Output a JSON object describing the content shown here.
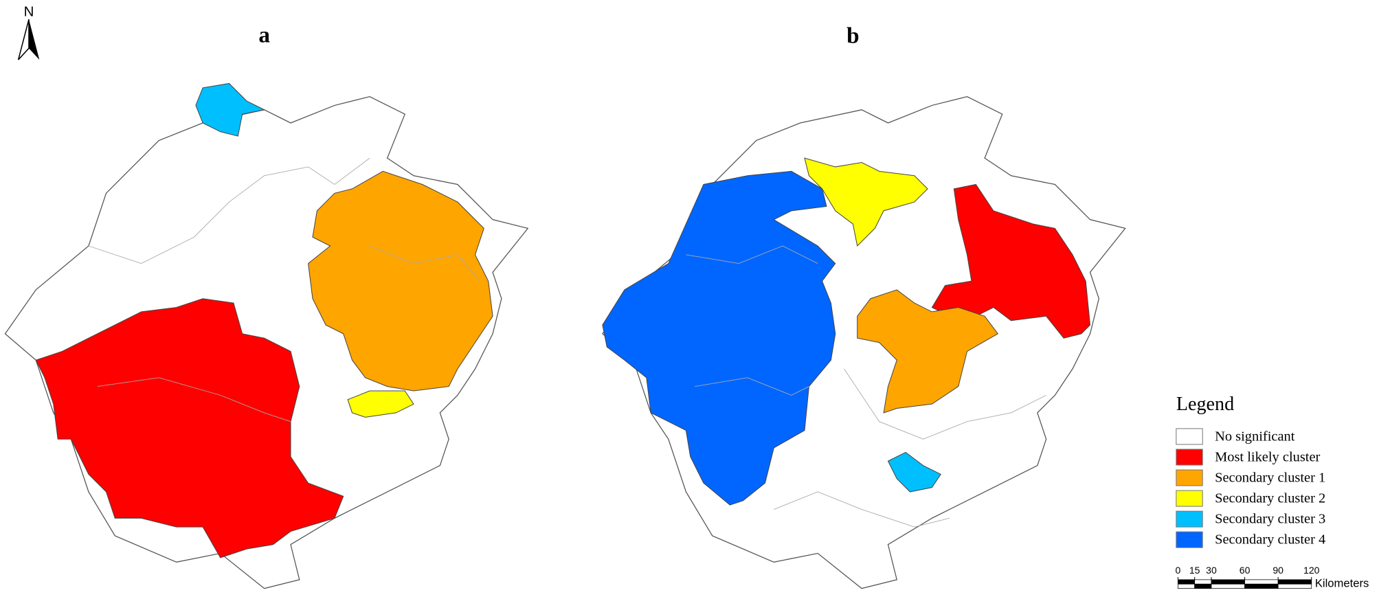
{
  "north": "N",
  "panels": [
    {
      "label": "a"
    },
    {
      "label": "b"
    }
  ],
  "legend": {
    "title": "Legend",
    "items": [
      {
        "label": "No significant",
        "color": "#ffffff"
      },
      {
        "label": "Most likely cluster",
        "color": "#ff0000"
      },
      {
        "label": "Secondary cluster 1",
        "color": "#ffa500"
      },
      {
        "label": "Secondary cluster 2",
        "color": "#ffff00"
      },
      {
        "label": "Secondary cluster 3",
        "color": "#00bfff"
      },
      {
        "label": "Secondary cluster 4",
        "color": "#0066ff"
      }
    ]
  },
  "scale_bar": {
    "ticks": [
      0,
      15,
      30,
      60,
      90,
      120
    ],
    "unit": "Kilometers"
  }
}
